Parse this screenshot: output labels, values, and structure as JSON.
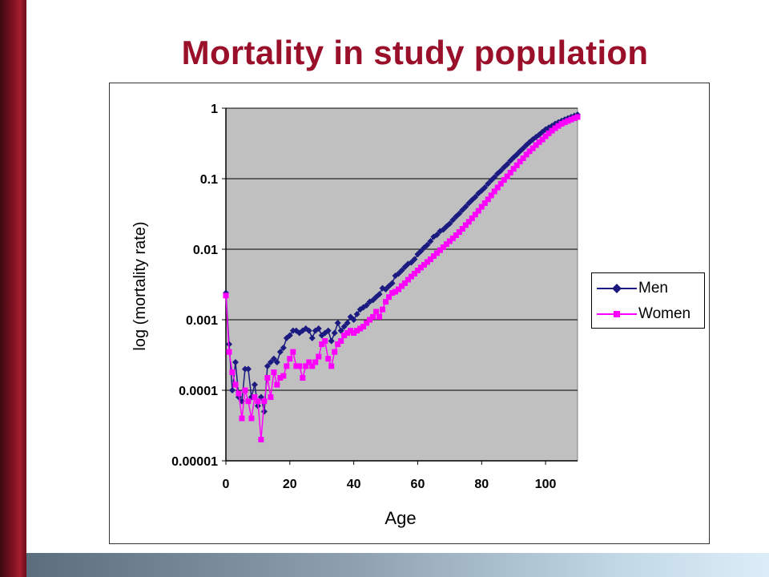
{
  "slide": {
    "title": "Mortality in study population",
    "accent_color": "#9a0f2a"
  },
  "chart_data": {
    "type": "line",
    "title": "",
    "xlabel": "Age",
    "ylabel": "log (mortality rate)",
    "xlim": [
      0,
      110
    ],
    "ylim": [
      1e-05,
      1
    ],
    "yscale": "log",
    "x_ticks": [
      0,
      20,
      40,
      60,
      80,
      100
    ],
    "x_tick_labels": [
      "0",
      "20",
      "40",
      "60",
      "80",
      "100"
    ],
    "y_ticks": [
      1,
      0.1,
      0.01,
      0.001,
      0.0001,
      1e-05
    ],
    "y_tick_labels": [
      "1",
      "0.1",
      "0.01",
      "0.001",
      "0.0001",
      "0.00001"
    ],
    "plot_background": "#c0c0c0",
    "grid": "horizontal",
    "legend_position": "right",
    "x": [
      0,
      1,
      2,
      3,
      4,
      5,
      6,
      7,
      8,
      9,
      10,
      11,
      12,
      13,
      14,
      15,
      16,
      17,
      18,
      19,
      20,
      21,
      22,
      23,
      24,
      25,
      26,
      27,
      28,
      29,
      30,
      31,
      32,
      33,
      34,
      35,
      36,
      37,
      38,
      39,
      40,
      41,
      42,
      43,
      44,
      45,
      46,
      47,
      48,
      49,
      50,
      51,
      52,
      53,
      54,
      55,
      56,
      57,
      58,
      59,
      60,
      61,
      62,
      63,
      64,
      65,
      66,
      67,
      68,
      69,
      70,
      71,
      72,
      73,
      74,
      75,
      76,
      77,
      78,
      79,
      80,
      81,
      82,
      83,
      84,
      85,
      86,
      87,
      88,
      89,
      90,
      91,
      92,
      93,
      94,
      95,
      96,
      97,
      98,
      99,
      100,
      101,
      102,
      103,
      104,
      105,
      106,
      107,
      108,
      109,
      110
    ],
    "series": [
      {
        "name": "Men",
        "color": "#1a1a80",
        "marker": "diamond",
        "values": [
          0.0024,
          0.00045,
          0.0001,
          0.00025,
          8e-05,
          7e-05,
          0.0002,
          0.0002,
          8e-05,
          0.00012,
          6e-05,
          8e-05,
          5e-05,
          0.00022,
          0.00025,
          0.00028,
          0.00025,
          0.00035,
          0.0004,
          0.00055,
          0.0006,
          0.0007,
          0.0007,
          0.00065,
          0.0007,
          0.00075,
          0.0007,
          0.00055,
          0.0007,
          0.00075,
          0.0006,
          0.00065,
          0.0007,
          0.0005,
          0.00065,
          0.0009,
          0.0007,
          0.0008,
          0.0009,
          0.0011,
          0.001,
          0.0012,
          0.0014,
          0.0015,
          0.0016,
          0.0018,
          0.0019,
          0.0021,
          0.0023,
          0.0028,
          0.0027,
          0.003,
          0.0033,
          0.0042,
          0.0045,
          0.005,
          0.0056,
          0.0062,
          0.0065,
          0.0072,
          0.0085,
          0.0094,
          0.0105,
          0.0115,
          0.013,
          0.015,
          0.016,
          0.018,
          0.019,
          0.021,
          0.023,
          0.026,
          0.029,
          0.032,
          0.036,
          0.04,
          0.045,
          0.05,
          0.055,
          0.062,
          0.068,
          0.075,
          0.085,
          0.095,
          0.105,
          0.118,
          0.13,
          0.145,
          0.16,
          0.18,
          0.2,
          0.22,
          0.245,
          0.27,
          0.3,
          0.33,
          0.36,
          0.39,
          0.42,
          0.46,
          0.5,
          0.53,
          0.56,
          0.6,
          0.63,
          0.66,
          0.69,
          0.72,
          0.75,
          0.78,
          0.81
        ]
      },
      {
        "name": "Women",
        "color": "#ff00ff",
        "marker": "square",
        "values": [
          0.0022,
          0.00035,
          0.00018,
          0.00012,
          9e-05,
          4e-05,
          0.0001,
          7e-05,
          4e-05,
          8e-05,
          7e-05,
          2e-05,
          7e-05,
          0.00015,
          8e-05,
          0.00018,
          0.00012,
          0.00015,
          0.00016,
          0.00022,
          0.00028,
          0.00035,
          0.00022,
          0.00022,
          0.00015,
          0.00022,
          0.00025,
          0.00022,
          0.00025,
          0.0003,
          0.00045,
          0.0005,
          0.00028,
          0.00022,
          0.00035,
          0.00045,
          0.0005,
          0.0006,
          0.00065,
          0.0007,
          0.00065,
          0.0007,
          0.00075,
          0.0008,
          0.0009,
          0.001,
          0.0011,
          0.0013,
          0.0011,
          0.0014,
          0.0018,
          0.0021,
          0.0024,
          0.0025,
          0.0027,
          0.003,
          0.0033,
          0.0037,
          0.0041,
          0.0045,
          0.005,
          0.0055,
          0.006,
          0.0066,
          0.0072,
          0.008,
          0.0088,
          0.0097,
          0.0107,
          0.0118,
          0.013,
          0.0143,
          0.0158,
          0.0175,
          0.0195,
          0.022,
          0.0245,
          0.0275,
          0.031,
          0.035,
          0.04,
          0.045,
          0.051,
          0.058,
          0.066,
          0.075,
          0.085,
          0.096,
          0.108,
          0.122,
          0.138,
          0.155,
          0.175,
          0.195,
          0.22,
          0.245,
          0.27,
          0.3,
          0.33,
          0.36,
          0.4,
          0.44,
          0.48,
          0.52,
          0.56,
          0.6,
          0.63,
          0.66,
          0.69,
          0.72,
          0.75
        ]
      }
    ]
  }
}
